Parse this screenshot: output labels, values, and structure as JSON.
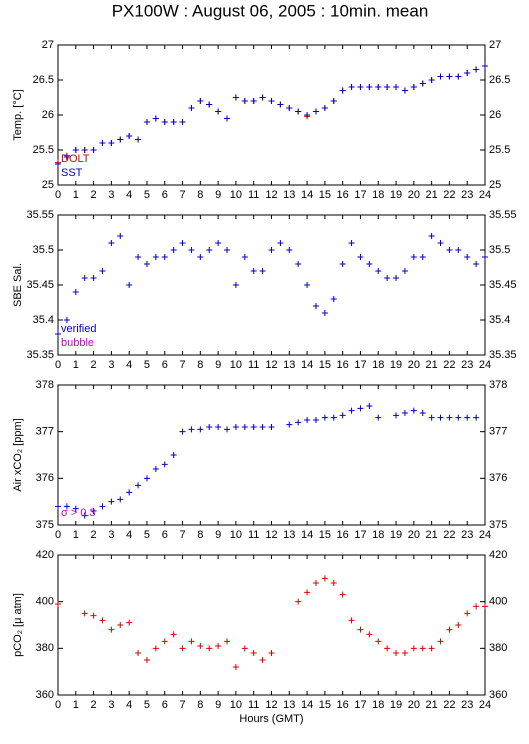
{
  "title": "PX100W : August 06, 2005 : 10min. mean",
  "chart_data": [
    {
      "type": "scatter",
      "ylabel": "Temp. [°C]",
      "x": [
        0,
        0.5,
        1,
        1.5,
        2,
        2.5,
        3,
        3.5,
        4,
        4.5,
        5,
        5.5,
        6,
        6.5,
        7,
        7.5,
        8,
        8.5,
        9,
        9.5,
        10,
        10.5,
        11,
        11.5,
        12,
        12.5,
        13,
        13.5,
        14,
        14.5,
        15,
        15.5,
        16,
        16.5,
        17,
        17.5,
        18,
        18.5,
        19,
        19.5,
        20,
        20.5,
        21,
        21.5,
        22,
        22.5,
        23,
        23.5,
        24
      ],
      "xlim": [
        0,
        24
      ],
      "xticks": [
        0,
        1,
        2,
        3,
        4,
        5,
        6,
        7,
        8,
        9,
        10,
        11,
        12,
        13,
        14,
        15,
        16,
        17,
        18,
        19,
        20,
        21,
        22,
        23,
        24
      ],
      "ylim": [
        25,
        27
      ],
      "yticks": [
        25,
        25.5,
        26,
        26.5,
        27
      ],
      "series": [
        {
          "name": "DOLT",
          "color": "#dd0000",
          "values": [
            25.32,
            25.42,
            25.5,
            25.5,
            25.5,
            25.6,
            25.6,
            25.65,
            25.7,
            25.65,
            25.9,
            25.95,
            25.9,
            25.9,
            25.9,
            26.1,
            26.2,
            26.15,
            26.05,
            25.95,
            26.25,
            26.2,
            26.2,
            26.25,
            26.2,
            26.15,
            26.1,
            26.05,
            25.98,
            26.05,
            26.1,
            26.2,
            26.35,
            26.4,
            26.4,
            26.4,
            26.4,
            26.4,
            26.4,
            26.35,
            26.4,
            26.45,
            26.5,
            26.55,
            26.55,
            26.55,
            26.6,
            26.65,
            26.7
          ]
        },
        {
          "name": "SST",
          "color": "#0000cc",
          "values": [
            25.3,
            25.4,
            25.5,
            25.5,
            25.5,
            25.6,
            25.6,
            25.65,
            25.7,
            25.65,
            25.9,
            25.95,
            25.9,
            25.9,
            25.9,
            26.1,
            26.2,
            26.15,
            26.05,
            25.95,
            26.25,
            26.2,
            26.2,
            26.25,
            26.2,
            26.15,
            26.1,
            26.05,
            26.0,
            26.05,
            26.1,
            26.2,
            26.35,
            26.4,
            26.4,
            26.4,
            26.4,
            26.4,
            26.4,
            26.35,
            26.4,
            26.45,
            26.5,
            26.55,
            26.55,
            26.55,
            26.6,
            26.65,
            26.7
          ]
        }
      ]
    },
    {
      "type": "scatter",
      "ylabel": "SBE Sal.",
      "x": [
        0,
        0.5,
        1,
        1.5,
        2,
        2.5,
        3,
        3.5,
        4,
        4.5,
        5,
        5.5,
        6,
        6.5,
        7,
        7.5,
        8,
        8.5,
        9,
        9.5,
        10,
        10.5,
        11,
        11.5,
        12,
        12.5,
        13,
        13.5,
        14,
        14.5,
        15,
        15.5,
        16,
        16.5,
        17,
        17.5,
        18,
        18.5,
        19,
        19.5,
        20,
        20.5,
        21,
        21.5,
        22,
        22.5,
        23,
        23.5,
        24
      ],
      "xlim": [
        0,
        24
      ],
      "xticks": [
        0,
        1,
        2,
        3,
        4,
        5,
        6,
        7,
        8,
        9,
        10,
        11,
        12,
        13,
        14,
        15,
        16,
        17,
        18,
        19,
        20,
        21,
        22,
        23,
        24
      ],
      "ylim": [
        35.35,
        35.55
      ],
      "yticks": [
        35.35,
        35.4,
        35.45,
        35.5,
        35.55
      ],
      "series": [
        {
          "name": "verified",
          "color": "#0000cc",
          "values": [
            35.38,
            35.4,
            35.44,
            35.46,
            35.46,
            35.47,
            35.51,
            35.52,
            35.45,
            35.49,
            35.48,
            35.49,
            35.49,
            35.5,
            35.51,
            35.5,
            35.49,
            35.5,
            35.51,
            35.5,
            35.45,
            35.49,
            35.47,
            35.47,
            35.5,
            35.51,
            35.5,
            35.48,
            35.45,
            35.42,
            35.41,
            35.43,
            35.48,
            35.51,
            35.49,
            35.48,
            35.47,
            35.46,
            35.46,
            35.47,
            35.49,
            35.49,
            35.52,
            35.51,
            35.5,
            35.5,
            35.49,
            35.48,
            35.49
          ]
        }
      ],
      "annotations": [
        {
          "text": "bubble",
          "color": "#cc00cc"
        }
      ]
    },
    {
      "type": "scatter",
      "ylabel": "Air xCO₂ [ppm]",
      "x": [
        0,
        0.5,
        1,
        1.5,
        2,
        2.5,
        3,
        3.5,
        4,
        4.5,
        5,
        5.5,
        6,
        6.5,
        7,
        7.5,
        8,
        8.5,
        9,
        9.5,
        10,
        10.5,
        11,
        11.5,
        12,
        12.5,
        13,
        13.5,
        14,
        14.5,
        15,
        15.5,
        16,
        16.5,
        17,
        17.5,
        18,
        18.5,
        19,
        19.5,
        20,
        20.5,
        21,
        21.5,
        22,
        22.5,
        23,
        23.5,
        24
      ],
      "xlim": [
        0,
        24
      ],
      "xticks": [
        0,
        1,
        2,
        3,
        4,
        5,
        6,
        7,
        8,
        9,
        10,
        11,
        12,
        13,
        14,
        15,
        16,
        17,
        18,
        19,
        20,
        21,
        22,
        23,
        24
      ],
      "ylim": [
        375,
        378
      ],
      "yticks": [
        375,
        376,
        377,
        378
      ],
      "series": [
        {
          "color": "#0000cc",
          "values": [
            375.4,
            375.4,
            375.35,
            375.2,
            375.3,
            375.4,
            375.5,
            375.55,
            375.7,
            375.85,
            376.0,
            376.2,
            376.3,
            376.5,
            377.0,
            377.05,
            377.05,
            377.1,
            377.1,
            377.05,
            377.1,
            377.1,
            377.1,
            377.1,
            377.1,
            null,
            377.15,
            377.2,
            377.25,
            377.25,
            377.3,
            377.3,
            377.35,
            377.45,
            377.5,
            377.55,
            377.3,
            null,
            377.35,
            377.4,
            377.45,
            377.4,
            377.3,
            377.3,
            377.3,
            377.3,
            377.3,
            377.3,
            null
          ]
        }
      ],
      "annotations": [
        {
          "text": "σ > 0.3",
          "color": "#cc00cc"
        }
      ]
    },
    {
      "type": "scatter",
      "ylabel": "pCO₂ [μ atm]",
      "xlabel": "Hours (GMT)",
      "x": [
        0,
        0.5,
        1,
        1.5,
        2,
        2.5,
        3,
        3.5,
        4,
        4.5,
        5,
        5.5,
        6,
        6.5,
        7,
        7.5,
        8,
        8.5,
        9,
        9.5,
        10,
        10.5,
        11,
        11.5,
        12,
        12.5,
        13,
        13.5,
        14,
        14.5,
        15,
        15.5,
        16,
        16.5,
        17,
        17.5,
        18,
        18.5,
        19,
        19.5,
        20,
        20.5,
        21,
        21.5,
        22,
        22.5,
        23,
        23.5,
        24
      ],
      "xlim": [
        0,
        24
      ],
      "xticks": [
        0,
        1,
        2,
        3,
        4,
        5,
        6,
        7,
        8,
        9,
        10,
        11,
        12,
        13,
        14,
        15,
        16,
        17,
        18,
        19,
        20,
        21,
        22,
        23,
        24
      ],
      "ylim": [
        360,
        420
      ],
      "yticks": [
        360,
        380,
        400,
        420
      ],
      "series": [
        {
          "color": "#dd0000",
          "values": [
            399,
            null,
            null,
            395,
            394,
            392,
            388,
            390,
            391,
            378,
            375,
            380,
            383,
            386,
            380,
            383,
            381,
            380,
            381,
            383,
            372,
            380,
            378,
            375,
            378,
            null,
            null,
            400,
            404,
            408,
            410,
            408,
            403,
            392,
            388,
            386,
            383,
            380,
            378,
            378,
            380,
            380,
            380,
            383,
            388,
            390,
            395,
            398,
            398
          ]
        }
      ]
    }
  ]
}
